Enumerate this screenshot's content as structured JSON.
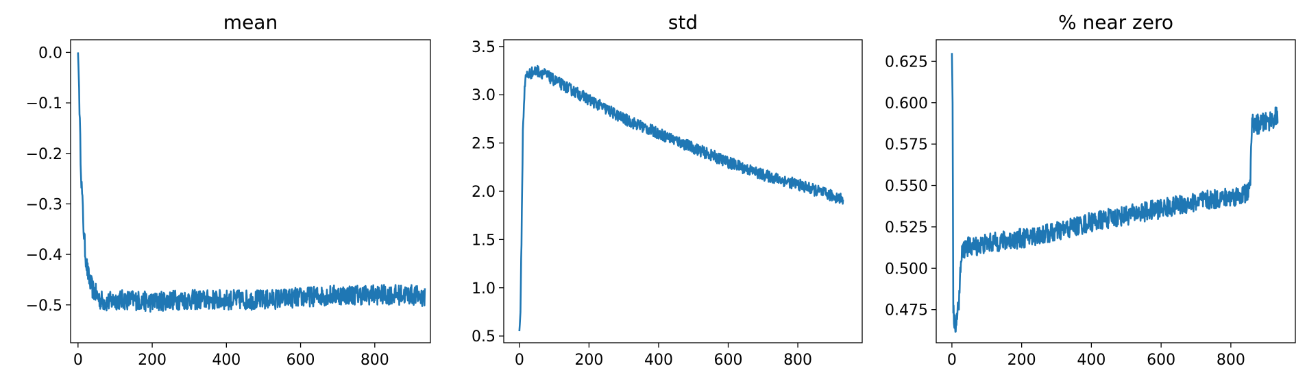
{
  "chart_data": [
    {
      "type": "line",
      "title": "mean",
      "xlabel": "",
      "ylabel": "",
      "xlim": [
        -20,
        950
      ],
      "ylim": [
        -0.575,
        0.025
      ],
      "xticks": [
        0,
        200,
        400,
        600,
        800
      ],
      "yticks": [
        0.0,
        -0.1,
        -0.2,
        -0.3,
        -0.4,
        -0.5
      ],
      "ytick_labels": [
        "0.0",
        "−0.1",
        "−0.2",
        "−0.3",
        "−0.4",
        "−0.5"
      ],
      "series": [
        {
          "color": "#1f77b4",
          "x": [
            0,
            3,
            6,
            9,
            12,
            16,
            20,
            25,
            30,
            35,
            40,
            50,
            60,
            80,
            100,
            150,
            200,
            250,
            300,
            400,
            500,
            600,
            700,
            800,
            900,
            935
          ],
          "values": [
            0.0,
            -0.07,
            -0.18,
            -0.25,
            -0.3,
            -0.36,
            -0.4,
            -0.43,
            -0.45,
            -0.46,
            -0.47,
            -0.48,
            -0.49,
            -0.495,
            -0.49,
            -0.49,
            -0.495,
            -0.49,
            -0.49,
            -0.49,
            -0.49,
            -0.485,
            -0.48,
            -0.48,
            -0.48,
            -0.485
          ],
          "noise": 0.02
        }
      ]
    },
    {
      "type": "line",
      "title": "std",
      "xlabel": "",
      "ylabel": "",
      "xlim": [
        -45,
        985
      ],
      "ylim": [
        0.43,
        3.57
      ],
      "xticks": [
        0,
        200,
        400,
        600,
        800
      ],
      "yticks": [
        0.5,
        1.0,
        1.5,
        2.0,
        2.5,
        3.0,
        3.5
      ],
      "ytick_labels": [
        "0.5",
        "1.0",
        "1.5",
        "2.0",
        "2.5",
        "3.0",
        "3.5"
      ],
      "series": [
        {
          "color": "#1f77b4",
          "x": [
            0,
            3,
            6,
            10,
            15,
            20,
            30,
            50,
            70,
            100,
            200,
            300,
            400,
            500,
            600,
            700,
            800,
            900,
            930
          ],
          "values": [
            0.55,
            0.75,
            1.5,
            2.6,
            3.1,
            3.2,
            3.22,
            3.25,
            3.22,
            3.15,
            2.95,
            2.75,
            2.6,
            2.45,
            2.3,
            2.17,
            2.07,
            1.95,
            1.92
          ],
          "noise": 0.06
        }
      ]
    },
    {
      "type": "line",
      "title": "% near zero",
      "xlabel": "",
      "ylabel": "",
      "xlim": [
        -45,
        985
      ],
      "ylim": [
        0.455,
        0.638
      ],
      "xticks": [
        0,
        200,
        400,
        600,
        800
      ],
      "yticks": [
        0.475,
        0.5,
        0.525,
        0.55,
        0.575,
        0.6,
        0.625
      ],
      "ytick_labels": [
        "0.475",
        "0.500",
        "0.525",
        "0.550",
        "0.575",
        "0.600",
        "0.625"
      ],
      "series": [
        {
          "color": "#1f77b4",
          "x": [
            0,
            2,
            4,
            8,
            15,
            20,
            25,
            30,
            40,
            60,
            100,
            200,
            300,
            400,
            500,
            600,
            700,
            800,
            845,
            855,
            860,
            880,
            900,
            935
          ],
          "values": [
            0.63,
            0.6,
            0.475,
            0.466,
            0.47,
            0.48,
            0.5,
            0.51,
            0.513,
            0.513,
            0.515,
            0.518,
            0.522,
            0.528,
            0.532,
            0.536,
            0.54,
            0.543,
            0.545,
            0.548,
            0.587,
            0.587,
            0.588,
            0.592
          ],
          "noise": 0.006
        }
      ]
    }
  ]
}
